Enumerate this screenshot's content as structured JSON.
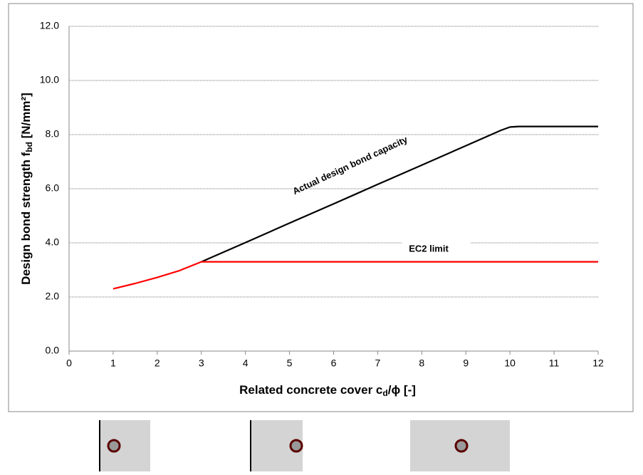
{
  "chart_data": {
    "type": "line",
    "xlabel": {
      "text": "Related concrete cover c",
      "subscript": "d",
      "suffix": "/ϕ [-]"
    },
    "ylabel": {
      "text": "Design bond strength f",
      "subscript": "bd",
      "suffix": " [N/mm²]"
    },
    "xlim": [
      0,
      12
    ],
    "xticks": [
      0,
      1,
      2,
      3,
      4,
      5,
      6,
      7,
      8,
      9,
      10,
      11,
      12
    ],
    "ylim": [
      0,
      12
    ],
    "yticks": [
      {
        "value": 0,
        "label": "0.0"
      },
      {
        "value": 2,
        "label": "2.0"
      },
      {
        "value": 4,
        "label": "4.0"
      },
      {
        "value": 6,
        "label": "6.0"
      },
      {
        "value": 8,
        "label": "8.0"
      },
      {
        "value": 10,
        "label": "10.0"
      },
      {
        "value": 12,
        "label": "12.0"
      }
    ],
    "grid": true,
    "series": [
      {
        "name": "Actual design bond capacity",
        "color": "#000000",
        "x": [
          3,
          4,
          5,
          6,
          7,
          8,
          9,
          9.8,
          10,
          10.2,
          12
        ],
        "values": [
          3.3,
          4.01,
          4.73,
          5.44,
          6.16,
          6.87,
          7.59,
          8.16,
          8.28,
          8.3,
          8.3
        ]
      },
      {
        "name": "EC2 limit",
        "color": "#ff0000",
        "x": [
          1,
          1.5,
          2,
          2.5,
          3,
          12
        ],
        "values": [
          2.3,
          2.5,
          2.72,
          2.97,
          3.3,
          3.3
        ]
      }
    ]
  }
}
